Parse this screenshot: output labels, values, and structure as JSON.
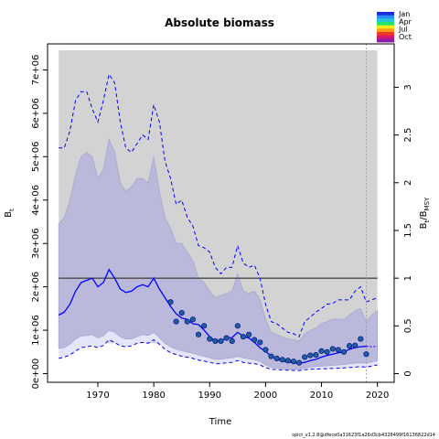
{
  "chart_data": {
    "type": "line",
    "title": "Absolute biomass",
    "xlabel": "Time",
    "ylabel": "B",
    "ylabel_sub": "t",
    "y2label_main": "B",
    "y2label_sub1": "t",
    "y2label_sep": "/B",
    "y2label_sub2": "MSY",
    "xlim": [
      1961,
      2023
    ],
    "ylim": [
      -200000,
      7600000
    ],
    "y2lim": [
      -0.0909,
      3.4545
    ],
    "bmsy": 2200000,
    "xticks": [
      1970,
      1980,
      1990,
      2000,
      2010,
      2020
    ],
    "yticks": [
      0,
      1000000,
      2000000,
      3000000,
      4000000,
      5000000,
      6000000,
      7000000
    ],
    "ytick_labels": [
      "0e+00",
      "1e+06",
      "2e+06",
      "3e+06",
      "4e+06",
      "5e+06",
      "6e+06",
      "7e+06"
    ],
    "y2ticks": [
      0,
      0.5,
      1,
      1.5,
      2,
      2.5,
      3
    ],
    "y2tick_labels": [
      "0",
      "0.5",
      "1",
      "1.5",
      "2",
      "2.5",
      "3"
    ],
    "shaded_region": {
      "x_start": 1963,
      "x_end": 2020,
      "y_min": 700000
    },
    "vline_x": 2018,
    "series": [
      {
        "role": "estimate",
        "x": [
          1963,
          1964,
          1965,
          1966,
          1967,
          1968,
          1969,
          1970,
          1971,
          1972,
          1973,
          1974,
          1975,
          1976,
          1977,
          1978,
          1979,
          1980,
          1981,
          1982,
          1983,
          1984,
          1985,
          1986,
          1987,
          1988,
          1989,
          1990,
          1991,
          1992,
          1993,
          1994,
          1995,
          1996,
          1997,
          1998,
          1999,
          2000,
          2001,
          2002,
          2003,
          2004,
          2005,
          2006,
          2007,
          2008,
          2009,
          2010,
          2011,
          2012,
          2013,
          2014,
          2015,
          2016,
          2017,
          2018
        ],
        "y": [
          1350000,
          1420000,
          1600000,
          1900000,
          2100000,
          2150000,
          2200000,
          2000000,
          2100000,
          2400000,
          2200000,
          1950000,
          1870000,
          1900000,
          2000000,
          2050000,
          2000000,
          2200000,
          1950000,
          1750000,
          1550000,
          1380000,
          1280000,
          1250000,
          1150000,
          1130000,
          1000000,
          850000,
          750000,
          750000,
          820000,
          830000,
          950000,
          860000,
          820000,
          720000,
          600000,
          510000,
          400000,
          340000,
          290000,
          270000,
          250000,
          240000,
          260000,
          300000,
          330000,
          380000,
          420000,
          450000,
          480000,
          500000,
          560000,
          600000,
          620000,
          630000
        ]
      },
      {
        "role": "upper_ci_outer",
        "x": [
          1963,
          1964,
          1965,
          1966,
          1967,
          1968,
          1969,
          1970,
          1971,
          1972,
          1973,
          1974,
          1975,
          1976,
          1977,
          1978,
          1979,
          1980,
          1981,
          1982,
          1983,
          1984,
          1985,
          1986,
          1987,
          1988,
          1989,
          1990,
          1991,
          1992,
          1993,
          1994,
          1995,
          1996,
          1997,
          1998,
          1999,
          2000,
          2001,
          2002,
          2003,
          2004,
          2005,
          2006,
          2007,
          2008,
          2009,
          2010,
          2011,
          2012,
          2013,
          2014,
          2015,
          2016,
          2017,
          2018,
          2019,
          2020
        ],
        "y": [
          5200000,
          5200000,
          5600000,
          6300000,
          6500000,
          6500000,
          6100000,
          5800000,
          6300000,
          6900000,
          6700000,
          5800000,
          5200000,
          5100000,
          5300000,
          5500000,
          5400000,
          6200000,
          5800000,
          4900000,
          4500000,
          3900000,
          4000000,
          3600000,
          3400000,
          2950000,
          2900000,
          2800000,
          2450000,
          2300000,
          2450000,
          2450000,
          2950000,
          2550000,
          2450000,
          2500000,
          2200000,
          1600000,
          1200000,
          1150000,
          1050000,
          950000,
          920000,
          850000,
          1200000,
          1300000,
          1420000,
          1500000,
          1600000,
          1620000,
          1700000,
          1700000,
          1700000,
          1900000,
          2000000,
          1650000,
          1700000,
          1750000
        ]
      },
      {
        "role": "upper_ci_inner",
        "x": [
          1963,
          1964,
          1965,
          1966,
          1967,
          1968,
          1969,
          1970,
          1971,
          1972,
          1973,
          1974,
          1975,
          1976,
          1977,
          1978,
          1979,
          1980,
          1981,
          1982,
          1983,
          1984,
          1985,
          1986,
          1987,
          1988,
          1989,
          1990,
          1991,
          1992,
          1993,
          1994,
          1995,
          1996,
          1997,
          1998,
          1999,
          2000,
          2001,
          2002,
          2003,
          2004,
          2005,
          2006,
          2007,
          2008,
          2009,
          2010,
          2011,
          2012,
          2013,
          2014,
          2015,
          2016,
          2017,
          2018,
          2019,
          2020
        ],
        "y": [
          3450000,
          3600000,
          4000000,
          4600000,
          5000000,
          5100000,
          5000000,
          4500000,
          4700000,
          5400000,
          5100000,
          4400000,
          4200000,
          4300000,
          4500000,
          4500000,
          4400000,
          5000000,
          4200000,
          3600000,
          3350000,
          3000000,
          3000000,
          2800000,
          2600000,
          2200000,
          2100000,
          1900000,
          1750000,
          1800000,
          1850000,
          1900000,
          2300000,
          1900000,
          1850000,
          1900000,
          1700000,
          1250000,
          950000,
          900000,
          850000,
          800000,
          780000,
          750000,
          920000,
          1000000,
          1050000,
          1150000,
          1200000,
          1250000,
          1250000,
          1250000,
          1350000,
          1450000,
          1500000,
          1200000,
          1350000,
          1450000
        ]
      },
      {
        "role": "lower_ci_inner",
        "x": [
          1963,
          1964,
          1965,
          1966,
          1967,
          1968,
          1969,
          1970,
          1971,
          1972,
          1973,
          1974,
          1975,
          1976,
          1977,
          1978,
          1979,
          1980,
          1981,
          1982,
          1983,
          1984,
          1985,
          1986,
          1987,
          1988,
          1989,
          1990,
          1991,
          1992,
          1993,
          1994,
          1995,
          1996,
          1997,
          1998,
          1999,
          2000,
          2001,
          2002,
          2003,
          2004,
          2005,
          2006,
          2007,
          2008,
          2009,
          2010,
          2011,
          2012,
          2013,
          2014,
          2015,
          2016,
          2017,
          2018,
          2019,
          2020
        ],
        "y": [
          580000,
          600000,
          680000,
          800000,
          870000,
          880000,
          900000,
          820000,
          870000,
          1000000,
          950000,
          850000,
          800000,
          800000,
          850000,
          900000,
          880000,
          950000,
          830000,
          700000,
          620000,
          560000,
          530000,
          500000,
          470000,
          430000,
          400000,
          360000,
          330000,
          330000,
          350000,
          360000,
          400000,
          360000,
          340000,
          320000,
          280000,
          200000,
          150000,
          130000,
          120000,
          110000,
          105000,
          100000,
          130000,
          150000,
          160000,
          170000,
          180000,
          190000,
          200000,
          210000,
          230000,
          240000,
          250000,
          240000,
          270000,
          300000
        ]
      },
      {
        "role": "lower_ci_outer",
        "x": [
          1963,
          1964,
          1965,
          1966,
          1967,
          1968,
          1969,
          1970,
          1971,
          1972,
          1973,
          1974,
          1975,
          1976,
          1977,
          1978,
          1979,
          1980,
          1981,
          1982,
          1983,
          1984,
          1985,
          1986,
          1987,
          1988,
          1989,
          1990,
          1991,
          1992,
          1993,
          1994,
          1995,
          1996,
          1997,
          1998,
          1999,
          2000,
          2001,
          2002,
          2003,
          2004,
          2005,
          2006,
          2007,
          2008,
          2009,
          2010,
          2011,
          2012,
          2013,
          2014,
          2015,
          2016,
          2017,
          2018,
          2019,
          2020
        ],
        "y": [
          350000,
          380000,
          430000,
          520000,
          600000,
          620000,
          640000,
          600000,
          650000,
          780000,
          720000,
          640000,
          620000,
          640000,
          700000,
          720000,
          700000,
          780000,
          680000,
          560000,
          480000,
          440000,
          400000,
          380000,
          350000,
          310000,
          290000,
          260000,
          230000,
          230000,
          250000,
          260000,
          300000,
          260000,
          240000,
          230000,
          200000,
          140000,
          100000,
          90000,
          85000,
          80000,
          75000,
          70000,
          90000,
          100000,
          105000,
          110000,
          115000,
          120000,
          125000,
          130000,
          140000,
          150000,
          160000,
          150000,
          175000,
          200000
        ]
      },
      {
        "role": "forecast_lower_inner",
        "x": [
          2018,
          2019,
          2020
        ],
        "y": [
          630000,
          620000,
          630000
        ]
      }
    ],
    "observations": {
      "x": [
        1983,
        1984,
        1985,
        1986,
        1987,
        1988,
        1989,
        1990,
        1991,
        1992,
        1993,
        1994,
        1995,
        1996,
        1997,
        1998,
        1999,
        2000,
        2001,
        2002,
        2003,
        2004,
        2005,
        2006,
        2007,
        2008,
        2009,
        2010,
        2011,
        2012,
        2013,
        2014,
        2015,
        2016,
        2017,
        2018
      ],
      "y": [
        1650000,
        1200000,
        1400000,
        1200000,
        1250000,
        900000,
        1100000,
        800000,
        750000,
        750000,
        820000,
        750000,
        1100000,
        850000,
        900000,
        780000,
        720000,
        550000,
        400000,
        350000,
        320000,
        300000,
        280000,
        250000,
        380000,
        420000,
        430000,
        520000,
        500000,
        570000,
        550000,
        500000,
        640000,
        650000,
        800000,
        450000
      ],
      "colors": [
        "#0a1a8a",
        "#0a1a8a",
        "#0a1a8a",
        "#0a1a8a",
        "#0a1a8a",
        "#0a1a8a",
        "#0a1a8a",
        "#0a1a8a",
        "#0a1a8a",
        "#0a1a8a",
        "#0a1a8a",
        "#0a1a8a",
        "#0a1a8a",
        "#0a1a8a",
        "#0a1a8a",
        "#0a1a8a",
        "#0a1a8a",
        "#0a1a8a",
        "#0a1a8a",
        "#0a1a8a",
        "#0a1a8a",
        "#0a1a8a",
        "#0a1a8a",
        "#0a1a8a",
        "#0a1a8a",
        "#0a1a8a",
        "#0a1a8a",
        "#0a1a8a",
        "#0a1a8a",
        "#0a1a8a",
        "#0a1a8a",
        "#0a1a8a",
        "#0a1a8a",
        "#0a1a8a",
        "#0a1a8a",
        "#0a1a8a"
      ],
      "face_color": "#1f5fa0"
    },
    "legend": {
      "position": "top-right",
      "labels": [
        "Jan",
        "Apr",
        "Jul",
        "Oct"
      ],
      "colors": [
        "#1a2bd9",
        "#2a8cff",
        "#26c6da",
        "#22e36b",
        "#f2ea1a",
        "#ff9a1a",
        "#f0382a",
        "#d6176e",
        "#8e1aa8"
      ]
    },
    "colors": {
      "ci_band": "#c7c7e2",
      "ci_band_inner": "#bab9dc",
      "outer_ci": "#0000ff",
      "estimate": "#0000ff",
      "bmsy_line": "#4a4a4a",
      "shade": "#d3d3d3",
      "lower_band": "#e4e4fb"
    }
  },
  "footer": "spict_v1.2.8@dfece0a31623f1a26d3cb4328499f16136822d14"
}
